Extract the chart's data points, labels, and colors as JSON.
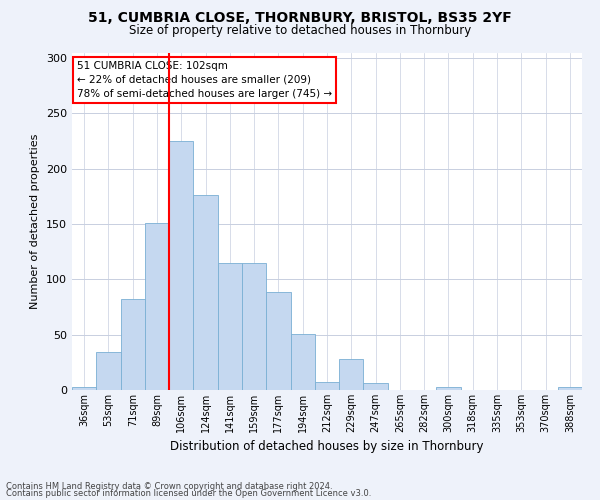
{
  "title": "51, CUMBRIA CLOSE, THORNBURY, BRISTOL, BS35 2YF",
  "subtitle": "Size of property relative to detached houses in Thornbury",
  "xlabel": "Distribution of detached houses by size in Thornbury",
  "ylabel": "Number of detached properties",
  "bar_labels": [
    "36sqm",
    "53sqm",
    "71sqm",
    "89sqm",
    "106sqm",
    "124sqm",
    "141sqm",
    "159sqm",
    "177sqm",
    "194sqm",
    "212sqm",
    "229sqm",
    "247sqm",
    "265sqm",
    "282sqm",
    "300sqm",
    "318sqm",
    "335sqm",
    "353sqm",
    "370sqm",
    "388sqm"
  ],
  "bar_values": [
    3,
    34,
    82,
    151,
    225,
    176,
    115,
    115,
    89,
    51,
    7,
    28,
    6,
    0,
    0,
    3,
    0,
    0,
    0,
    0,
    3
  ],
  "bar_color": "#c5d8f0",
  "bar_edge_color": "#7aafd4",
  "vline_color": "red",
  "annotation_text": "51 CUMBRIA CLOSE: 102sqm\n← 22% of detached houses are smaller (209)\n78% of semi-detached houses are larger (745) →",
  "annotation_box_color": "white",
  "annotation_box_edge_color": "red",
  "ylim": [
    0,
    305
  ],
  "yticks": [
    0,
    50,
    100,
    150,
    200,
    250,
    300
  ],
  "footer_line1": "Contains HM Land Registry data © Crown copyright and database right 2024.",
  "footer_line2": "Contains public sector information licensed under the Open Government Licence v3.0.",
  "bg_color": "#eef2fa",
  "plot_bg_color": "#ffffff",
  "grid_color": "#c8cfe0"
}
